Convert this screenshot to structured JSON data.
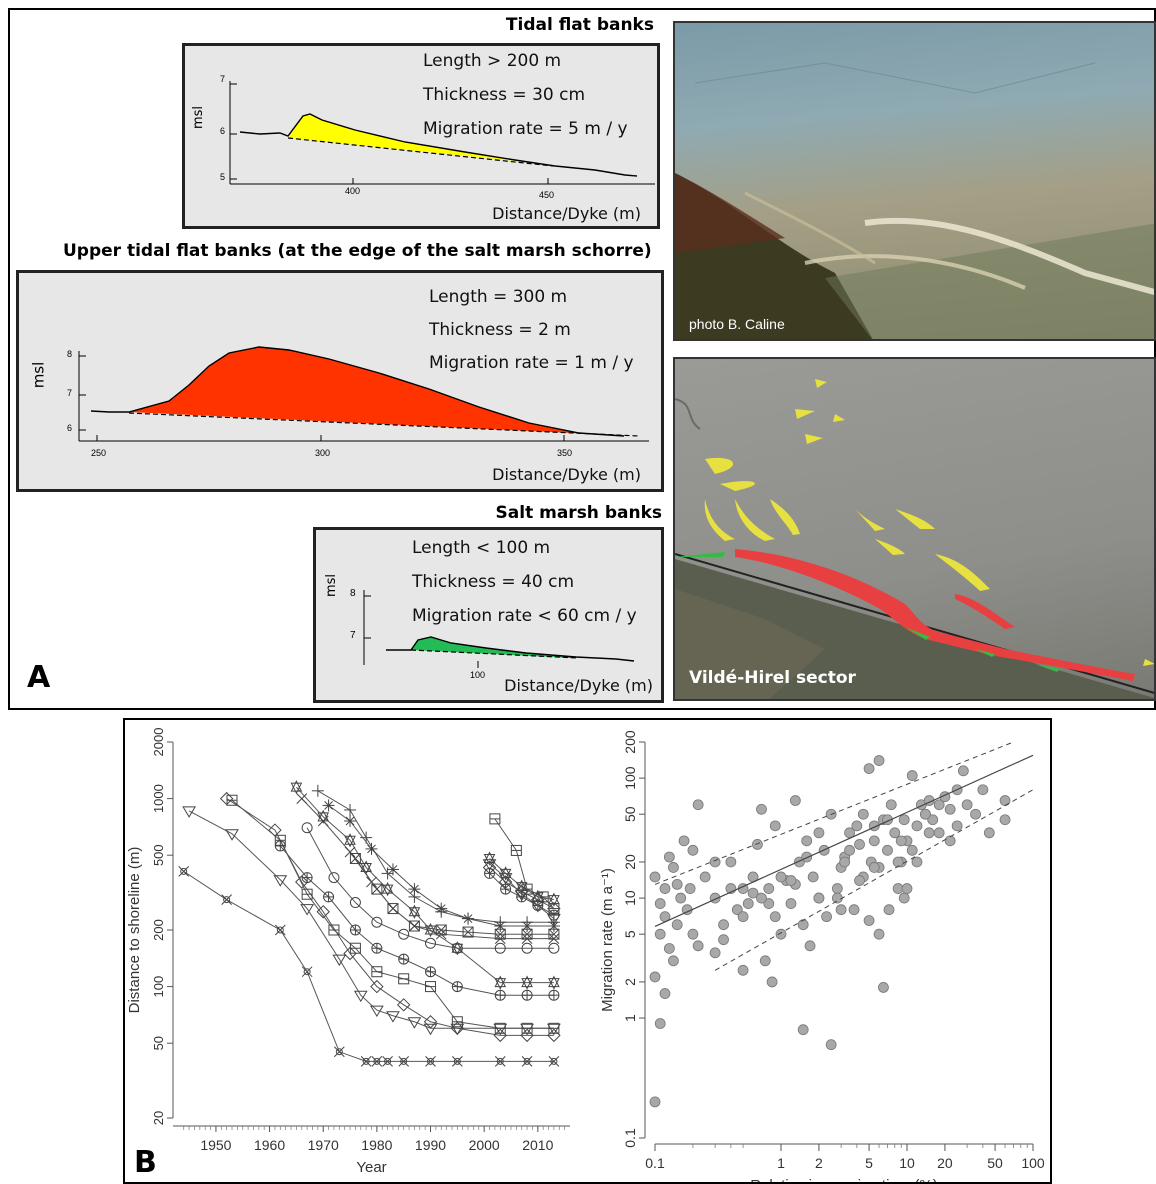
{
  "panelA": {
    "letter": "A",
    "tidal": {
      "title": "Tidal flat banks",
      "length": "Length > 200 m",
      "thickness": "Thickness = 30 cm",
      "migration": "Migration rate = 5 m / y",
      "ylabel": "msl",
      "xlabel": "Distance/Dyke (m)",
      "yticks": [
        "7",
        "6",
        "5"
      ],
      "xticks": [
        "400",
        "450"
      ]
    },
    "upper": {
      "title": "Upper tidal flat banks (at the edge of the salt marsh schorre)",
      "length": "Length = 300 m",
      "thickness": "Thickness = 2 m",
      "migration": "Migration rate = 1 m / y",
      "ylabel": "msl",
      "xlabel": "Distance/Dyke (m)",
      "yticks": [
        "8",
        "7",
        "6"
      ],
      "xticks": [
        "250",
        "300",
        "350"
      ]
    },
    "salt": {
      "title": "Salt marsh banks",
      "length": "Length < 100 m",
      "thickness": "Thickness = 40 cm",
      "migration": "Migration rate < 60 cm / y",
      "ylabel": "msl",
      "xlabel": "Distance/Dyke (m)",
      "yticks": [
        "8",
        "7"
      ],
      "xticks": [
        "100"
      ]
    },
    "photo_credit": "photo B. Caline",
    "map_label": "Vildé-Hirel sector",
    "colors": {
      "tidal": "#ffff00",
      "upper": "#ff3300",
      "salt": "#22bb55"
    }
  },
  "panelB": {
    "letter": "B"
  },
  "chart_data": [
    {
      "type": "line",
      "xlabel": "Year",
      "ylabel": "Distance to shoreline (m)",
      "log_y": true,
      "xlim": [
        1942,
        2016
      ],
      "ylim": [
        20,
        2000
      ],
      "x_ticks": [
        1950,
        1960,
        1970,
        1980,
        1990,
        2000,
        2010
      ],
      "y_ticks": [
        20,
        50,
        100,
        200,
        500,
        1000,
        2000
      ],
      "series": [
        {
          "marker": "cross",
          "x": [
            1944,
            1952,
            1962,
            1967,
            1973,
            1978,
            1980,
            1982,
            1985,
            1990,
            1995,
            2003,
            2008,
            2013
          ],
          "y": [
            410,
            290,
            200,
            120,
            45,
            40,
            40,
            40,
            40,
            40,
            40,
            40,
            40,
            40
          ]
        },
        {
          "marker": "tri_down",
          "x": [
            1945,
            1953,
            1962,
            1967,
            1973,
            1977,
            1980,
            1983,
            1987,
            1990,
            1995,
            2003,
            2008,
            2013
          ],
          "y": [
            860,
            650,
            370,
            260,
            140,
            90,
            75,
            70,
            65,
            60,
            60,
            60,
            60,
            60
          ]
        },
        {
          "marker": "diamond",
          "x": [
            1952,
            1961,
            1966,
            1970,
            1975,
            1980,
            1985,
            1990,
            1995,
            2003,
            2008,
            2013
          ],
          "y": [
            1000,
            680,
            360,
            250,
            150,
            100,
            80,
            65,
            60,
            55,
            55,
            55
          ]
        },
        {
          "marker": "square",
          "x": [
            1953,
            1962,
            1967,
            1972,
            1976,
            1980,
            1985,
            1990,
            1995,
            2003,
            2008,
            2013
          ],
          "y": [
            980,
            600,
            310,
            200,
            160,
            120,
            110,
            100,
            65,
            60,
            60,
            60
          ]
        },
        {
          "marker": "hex",
          "x": [
            1962,
            1967,
            1971,
            1976,
            1980,
            1985,
            1990,
            1995,
            2003,
            2008,
            2013
          ],
          "y": [
            560,
            380,
            300,
            200,
            160,
            140,
            120,
            100,
            90,
            90,
            90
          ]
        },
        {
          "marker": "star",
          "x": [
            1965,
            1970,
            1975,
            1978,
            1982,
            1987,
            1990,
            1995,
            2003,
            2008,
            2013
          ],
          "y": [
            1150,
            800,
            600,
            430,
            330,
            250,
            200,
            160,
            105,
            105,
            105
          ]
        },
        {
          "marker": "x",
          "x": [
            1966,
            1970,
            1975,
            1979,
            1983,
            1987,
            1992,
            2003,
            2008,
            2013
          ],
          "y": [
            1000,
            760,
            520,
            360,
            260,
            210,
            190,
            180,
            180,
            180
          ]
        },
        {
          "marker": "circle",
          "x": [
            1967,
            1972,
            1976,
            1980,
            1985,
            1990,
            1995,
            2003,
            2008,
            2013
          ],
          "y": [
            700,
            380,
            280,
            220,
            190,
            170,
            160,
            160,
            160,
            160
          ]
        },
        {
          "marker": "plus",
          "x": [
            1969,
            1975,
            1978,
            1982,
            1987,
            1992,
            1997,
            2003,
            2008,
            2013
          ],
          "y": [
            1100,
            870,
            620,
            400,
            300,
            250,
            230,
            220,
            220,
            220
          ]
        },
        {
          "marker": "asterisk",
          "x": [
            1971,
            1975,
            1979,
            1983,
            1987,
            1992,
            1997,
            2003,
            2008,
            2013
          ],
          "y": [
            920,
            760,
            540,
            420,
            330,
            260,
            230,
            210,
            210,
            210
          ]
        },
        {
          "marker": "square_x",
          "x": [
            1976,
            1980,
            1983,
            1987,
            1992,
            1997,
            2003,
            2008,
            2013
          ],
          "y": [
            480,
            330,
            260,
            210,
            200,
            195,
            190,
            190,
            190
          ]
        },
        {
          "marker": "square",
          "x": [
            2002,
            2006,
            2008,
            2011,
            2013
          ],
          "y": [
            780,
            530,
            330,
            300,
            260
          ]
        },
        {
          "marker": "star",
          "x": [
            2001,
            2004,
            2007,
            2010,
            2013
          ],
          "y": [
            480,
            400,
            340,
            300,
            290
          ]
        },
        {
          "marker": "diamond",
          "x": [
            2001,
            2004,
            2007,
            2010,
            2013
          ],
          "y": [
            430,
            360,
            320,
            290,
            260
          ]
        },
        {
          "marker": "hex",
          "x": [
            2001,
            2004,
            2007,
            2010,
            2013
          ],
          "y": [
            400,
            330,
            300,
            270,
            240
          ]
        },
        {
          "marker": "tri_down",
          "x": [
            2001,
            2004,
            2007,
            2010,
            2013
          ],
          "y": [
            450,
            380,
            310,
            270,
            230
          ]
        }
      ]
    },
    {
      "type": "scatter",
      "xlabel": "Relative immersion time (%)",
      "ylabel": "Migration rate (m a⁻¹)",
      "log_x": true,
      "log_y": true,
      "xlim": [
        0.1,
        100
      ],
      "ylim": [
        0.1,
        200
      ],
      "x_ticks": [
        0.1,
        1,
        2,
        5,
        10,
        20,
        50,
        100
      ],
      "y_ticks": [
        0.1,
        1,
        2,
        5,
        10,
        20,
        50,
        100,
        200
      ],
      "fit": {
        "x": [
          0.1,
          100
        ],
        "y": [
          5.8,
          155
        ]
      },
      "band_upper": {
        "x": [
          0.1,
          70
        ],
        "y": [
          13,
          200
        ]
      },
      "band_lower": {
        "x": [
          0.3,
          100
        ],
        "y": [
          2.5,
          80
        ]
      },
      "points": {
        "x": [
          0.1,
          0.11,
          0.12,
          0.1,
          0.13,
          0.15,
          0.11,
          0.12,
          0.1,
          0.14,
          0.13,
          0.16,
          0.12,
          0.11,
          0.15,
          0.18,
          0.2,
          0.22,
          0.17,
          0.19,
          0.2,
          0.25,
          0.22,
          0.14,
          0.3,
          0.35,
          0.3,
          0.4,
          0.45,
          0.5,
          0.4,
          0.55,
          0.6,
          0.7,
          0.65,
          0.8,
          0.9,
          0.75,
          1.0,
          0.9,
          1.1,
          0.85,
          1.2,
          1.4,
          1.5,
          1.3,
          1.6,
          1.8,
          2.0,
          2.2,
          1.7,
          2.5,
          2.8,
          3.0,
          2.3,
          3.5,
          3.2,
          3.8,
          4.0,
          4.5,
          4.2,
          5.0,
          5.5,
          5.2,
          6.0,
          6.5,
          7.0,
          7.5,
          8.0,
          8.5,
          9.0,
          9.5,
          10.0,
          11.0,
          12.0,
          13.0,
          14.0,
          15.0,
          16.0,
          18.0,
          20.0,
          22.0,
          25.0,
          28.0,
          30.0,
          35.0,
          40.0,
          60.0,
          0.35,
          0.5,
          0.6,
          0.8,
          1.3,
          1.6,
          2.0,
          2.8,
          3.5,
          4.2,
          5.5,
          6.0,
          7.2,
          8.5,
          9.5,
          11.0,
          14.0,
          18.0,
          22.0,
          5.0,
          6.0,
          10.0,
          0.3,
          0.5,
          0.7,
          1.0,
          1.5,
          2.5,
          3.0,
          4.5,
          5.5,
          7.0,
          9.0,
          12.0,
          15.0,
          25.0,
          45.0,
          60.0,
          1.2,
          2.0,
          3.2,
          6.5
        ],
        "y": [
          0.2,
          0.9,
          1.6,
          2.2,
          3.8,
          6.0,
          9.0,
          12.0,
          15.0,
          18.0,
          22.0,
          10.0,
          7.0,
          5.0,
          13.0,
          8.0,
          25.0,
          60.0,
          30.0,
          12.0,
          5.0,
          15.0,
          4.0,
          3.0,
          10.0,
          6.0,
          3.5,
          12.0,
          8.0,
          2.5,
          20.0,
          9.0,
          15.0,
          55.0,
          28.0,
          12.0,
          7.0,
          3.0,
          5.0,
          40.0,
          14.0,
          2.0,
          9.0,
          20.0,
          6.0,
          65.0,
          30.0,
          15.0,
          10.0,
          25.0,
          4.0,
          50.0,
          12.0,
          18.0,
          7.0,
          35.0,
          22.0,
          8.0,
          40.0,
          15.0,
          28.0,
          120.0,
          30.0,
          20.0,
          140.0,
          45.0,
          25.0,
          60.0,
          35.0,
          12.0,
          20.0,
          45.0,
          30.0,
          105.0,
          40.0,
          60.0,
          50.0,
          35.0,
          45.0,
          60.0,
          70.0,
          55.0,
          40.0,
          115.0,
          60.0,
          50.0,
          80.0,
          65.0,
          4.5,
          7.0,
          11.0,
          9.0,
          13.0,
          22.0,
          35.0,
          10.0,
          25.0,
          14.0,
          40.0,
          18.0,
          8.0,
          20.0,
          10.0,
          25.0,
          50.0,
          35.0,
          30.0,
          6.5,
          5.0,
          12.0,
          20.0,
          12.0,
          10.0,
          15.0,
          0.8,
          0.6,
          8.0,
          50.0,
          18.0,
          45.0,
          30.0,
          20.0,
          65.0,
          80.0,
          35.0,
          45.0,
          14.0,
          10.0,
          20.0,
          1.8
        ]
      }
    }
  ]
}
